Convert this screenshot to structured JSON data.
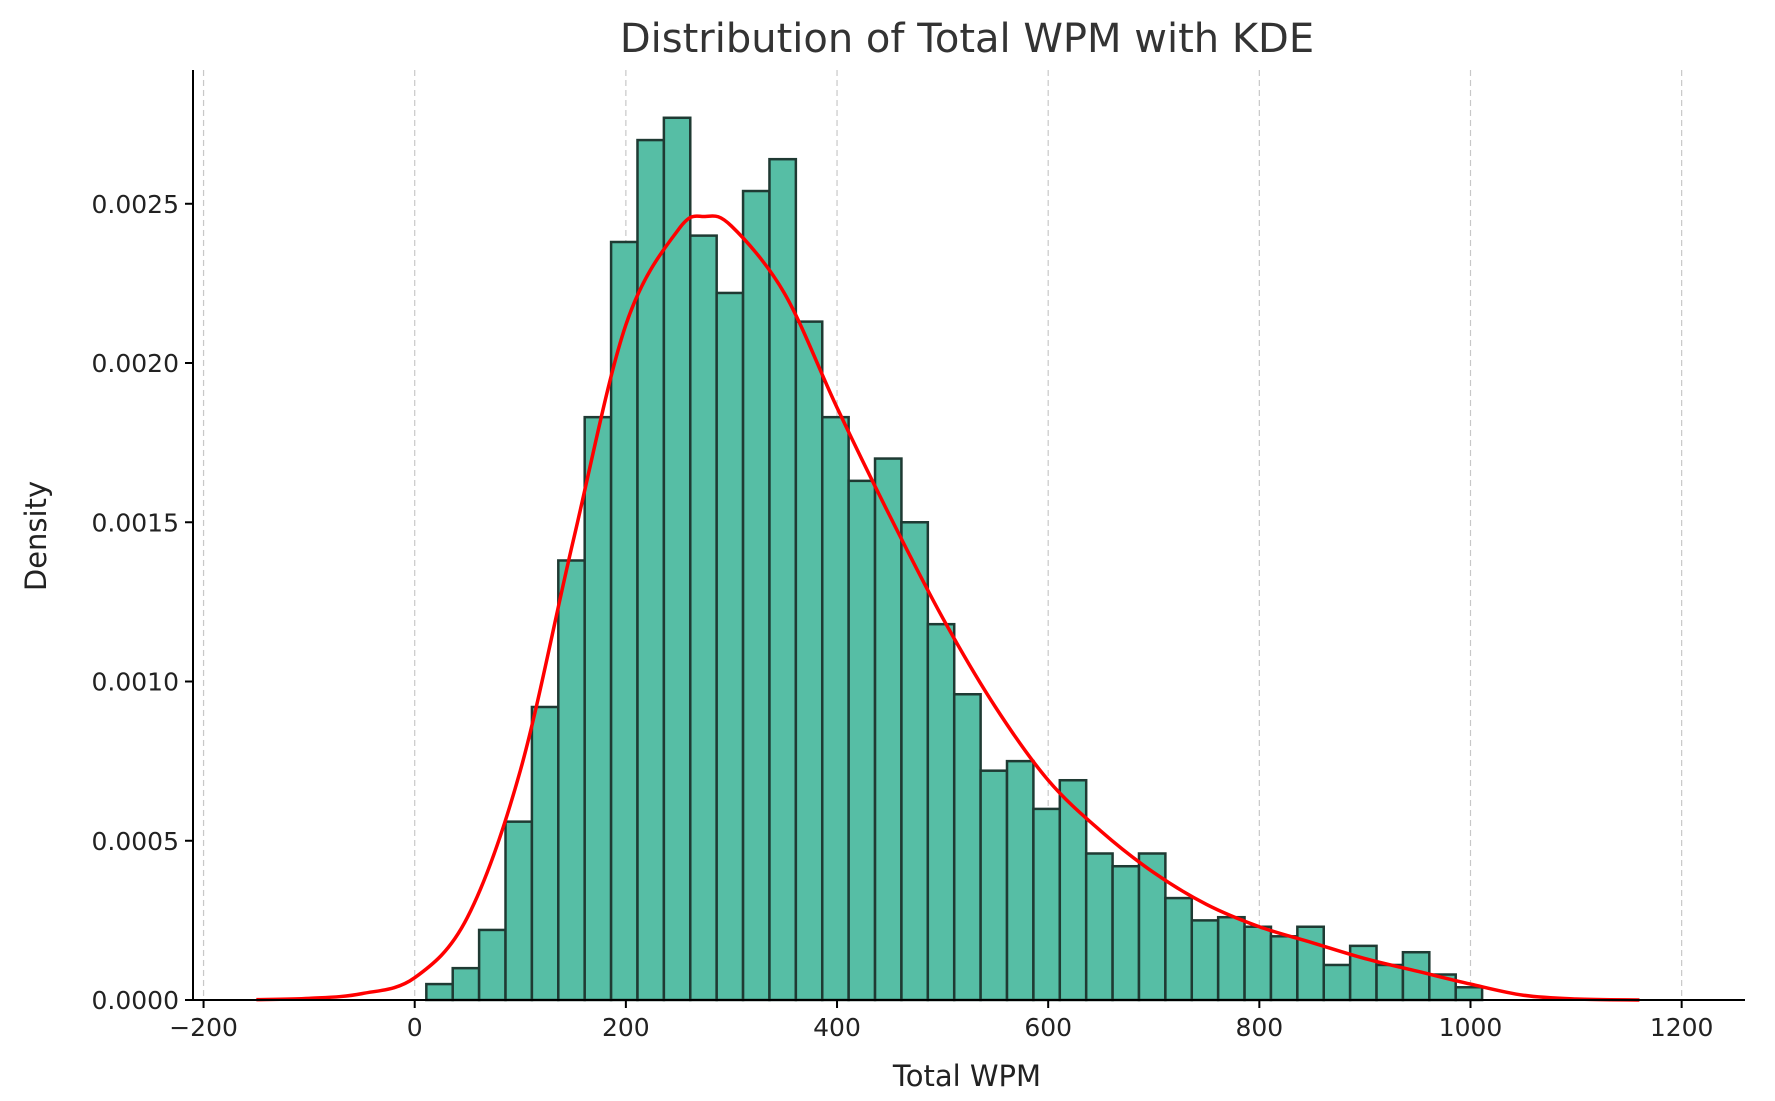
{
  "chart_data": {
    "type": "bar",
    "title": "Distribution of Total WPM with KDE",
    "xlabel": "Total WPM",
    "ylabel": "Density",
    "xlim": [
      -210,
      1260
    ],
    "ylim": [
      0,
      0.00292
    ],
    "x_ticks": [
      -200,
      0,
      200,
      400,
      600,
      800,
      1000,
      1200
    ],
    "x_tick_labels": [
      "−200",
      "0",
      "200",
      "400",
      "600",
      "800",
      "1000",
      "1200"
    ],
    "y_ticks": [
      0,
      0.0005,
      0.001,
      0.0015,
      0.002,
      0.0025
    ],
    "y_tick_labels": [
      "0.0000",
      "0.0005",
      "0.0010",
      "0.0015",
      "0.0020",
      "0.0025"
    ],
    "grid": "vertical dashed",
    "legend": "none",
    "histogram": {
      "bin_edges": [
        11,
        36,
        61,
        86,
        111,
        136,
        161,
        186,
        211,
        236,
        261,
        286,
        311,
        336,
        361,
        386,
        411,
        436,
        461,
        486,
        511,
        536,
        561,
        586,
        611,
        636,
        661,
        686,
        711,
        736,
        761,
        786,
        811,
        836,
        861,
        886,
        911,
        936,
        961,
        986,
        1011
      ],
      "values": [
        5e-05,
        0.0001,
        0.00022,
        0.00056,
        0.00092,
        0.00138,
        0.00183,
        0.00238,
        0.0027,
        0.00277,
        0.0024,
        0.00222,
        0.00254,
        0.00264,
        0.00213,
        0.00183,
        0.00163,
        0.0017,
        0.0015,
        0.00118,
        0.00096,
        0.00072,
        0.00075,
        0.0006,
        0.00069,
        0.00046,
        0.00042,
        0.00046,
        0.00032,
        0.00025,
        0.00026,
        0.00023,
        0.0002,
        0.00023,
        0.00011,
        0.00017,
        0.00011,
        0.00015,
        8e-05,
        4e-05
      ]
    },
    "kde": {
      "x": [
        -150,
        -100,
        -50,
        0,
        50,
        100,
        150,
        200,
        250,
        275,
        300,
        350,
        400,
        450,
        500,
        550,
        600,
        650,
        700,
        750,
        800,
        850,
        900,
        950,
        1000,
        1050,
        1100,
        1160
      ],
      "y": [
        1e-06,
        5e-06,
        2e-05,
        7e-05,
        0.00026,
        0.00072,
        0.00144,
        0.00212,
        0.00242,
        0.00246,
        0.00243,
        0.00222,
        0.00186,
        0.00152,
        0.0012,
        0.00092,
        0.00069,
        0.00053,
        0.0004,
        0.0003,
        0.00023,
        0.00018,
        0.00013,
        9e-05,
        5e-05,
        1.5e-05,
        3e-06,
        0
      ]
    },
    "colors": {
      "bar_fill": "#56bea5",
      "bar_edge": "#1f3a33",
      "kde_line": "#ff0000"
    }
  }
}
